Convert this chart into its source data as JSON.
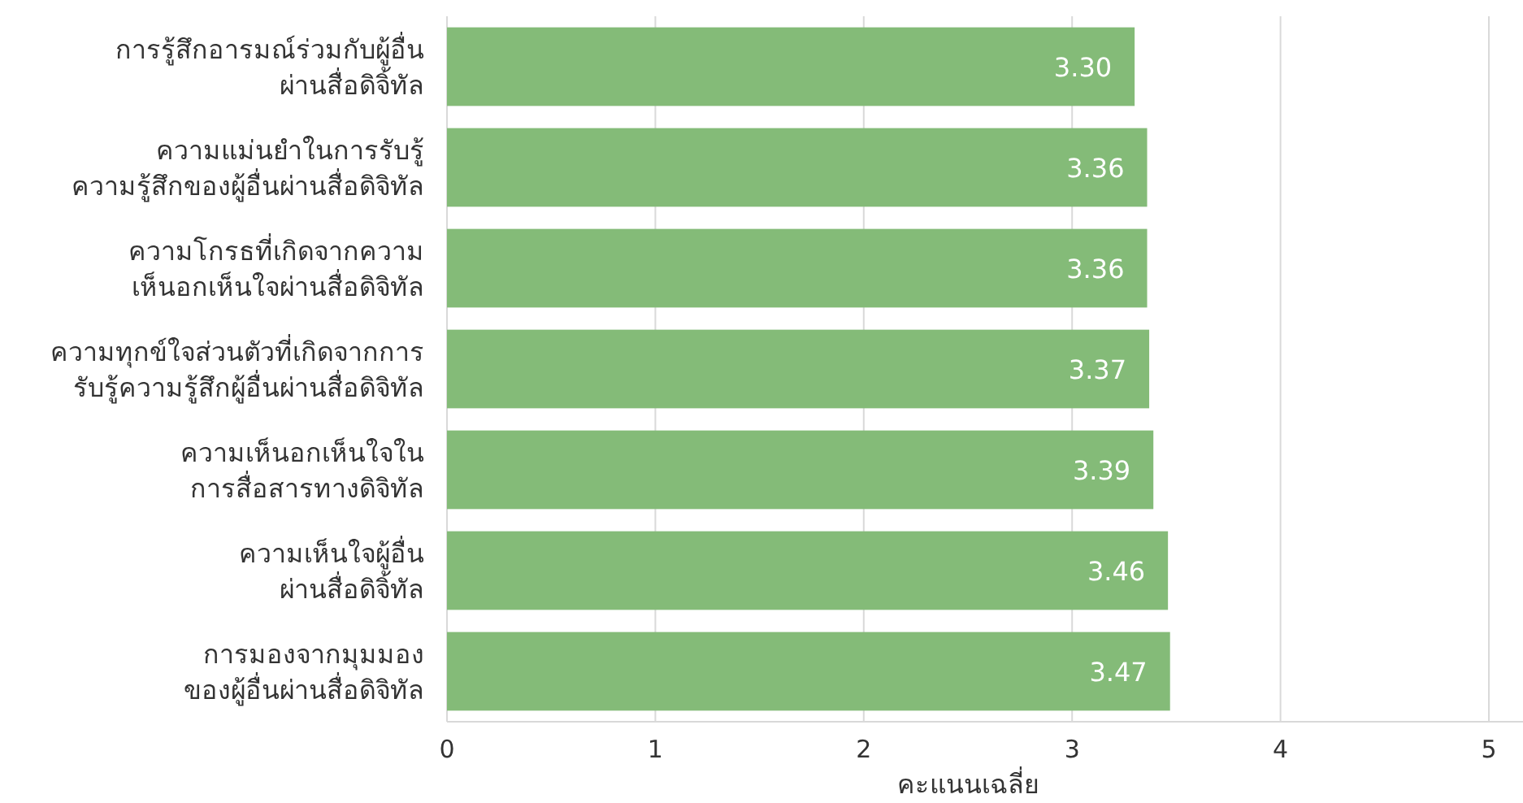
{
  "chart_data": {
    "type": "bar",
    "orientation": "horizontal",
    "xlabel": "คะแนนเฉลี่ย",
    "categories": [
      "การรู้สึกอารมณ์ร่วมกับผู้อื่น\nผ่านสื่อดิจิ้ทัล",
      "ความแม่นยำในการรับรู้\nความรู้สึกของผู้อื่นผ่านสื่อดิจิทัล",
      "ความโกรธที่เกิดจากความ\nเห็นอกเห็นใจผ่านสื่อดิจิทัล",
      "ความทุกข์ใจส่วนตัวที่เกิดจากการ\nรับรู้ความรู้สึกผู้อื่นผ่านสื่อดิจิทัล",
      "ความเห็นอกเห็นใจใน\nการสื่อสารทางดิจิทัล",
      "ความเห็นใจผู้อื่น\nผ่านสื่อดิจิ้ทัล",
      "การมองจากมุมมอง\nของผู้อื่นผ่านสื่อดิจิทัล"
    ],
    "values": [
      3.3,
      3.36,
      3.36,
      3.37,
      3.39,
      3.46,
      3.47
    ],
    "value_labels": [
      "3.30",
      "3.36",
      "3.36",
      "3.37",
      "3.39",
      "3.46",
      "3.47"
    ],
    "color": "#84bb78",
    "xlim": [
      0,
      5
    ],
    "xticks": [
      0,
      1,
      2,
      3,
      4,
      5
    ],
    "grid": "x"
  }
}
